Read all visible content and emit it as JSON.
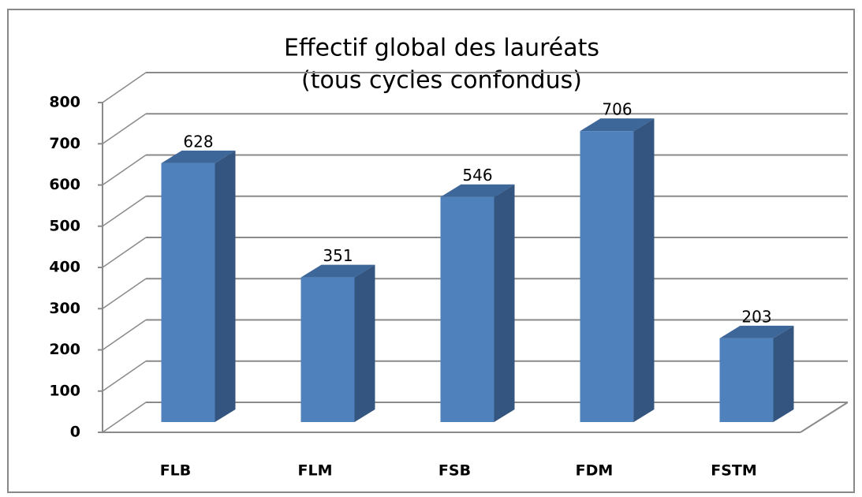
{
  "chart_data": {
    "type": "bar3d",
    "title": [
      "Effectif global des lauréats",
      "(tous cycles confondus)"
    ],
    "categories": [
      "FLB",
      "FLM",
      "FSB",
      "FDM",
      "FSTM"
    ],
    "values": [
      628,
      351,
      546,
      706,
      203
    ],
    "color": "#4f81bd",
    "ylim": [
      0,
      800
    ],
    "yticks": [
      0,
      100,
      200,
      300,
      400,
      500,
      600,
      700,
      800
    ],
    "grid": true
  }
}
